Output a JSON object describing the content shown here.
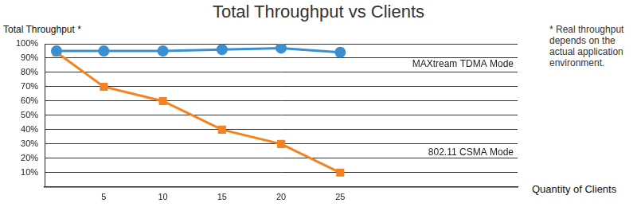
{
  "chart_data": {
    "type": "line",
    "title": "Total Throughput vs Clients",
    "y_label": "Total Throughput *",
    "x_label": "Quantity of Clients",
    "annotations": [
      "* Real throughput depends on the actual application environment."
    ],
    "x": [
      1,
      5,
      10,
      15,
      20,
      25
    ],
    "series": [
      {
        "name": "MAXtream TDMA Mode",
        "color": "#3a8fd0",
        "marker": "circle",
        "values": [
          95,
          95,
          95,
          96,
          97,
          94
        ]
      },
      {
        "name": "802.11 CSMA Mode",
        "color": "#f58220",
        "marker": "square",
        "values": [
          94,
          70,
          60,
          40,
          30,
          10
        ]
      }
    ],
    "xlim": [
      0,
      40
    ],
    "xticks": [
      5,
      10,
      15,
      20,
      25
    ],
    "ylim": [
      0,
      100
    ],
    "yticks": [
      {
        "value": 10,
        "label": "10%"
      },
      {
        "value": 20,
        "label": "20%"
      },
      {
        "value": 30,
        "label": "30%"
      },
      {
        "value": 40,
        "label": "40%"
      },
      {
        "value": 50,
        "label": "50%"
      },
      {
        "value": 60,
        "label": "60%"
      },
      {
        "value": 70,
        "label": "70%"
      },
      {
        "value": 80,
        "label": "80%"
      },
      {
        "value": 90,
        "label": "90%"
      },
      {
        "value": 100,
        "label": "100%"
      }
    ],
    "grid": true
  }
}
